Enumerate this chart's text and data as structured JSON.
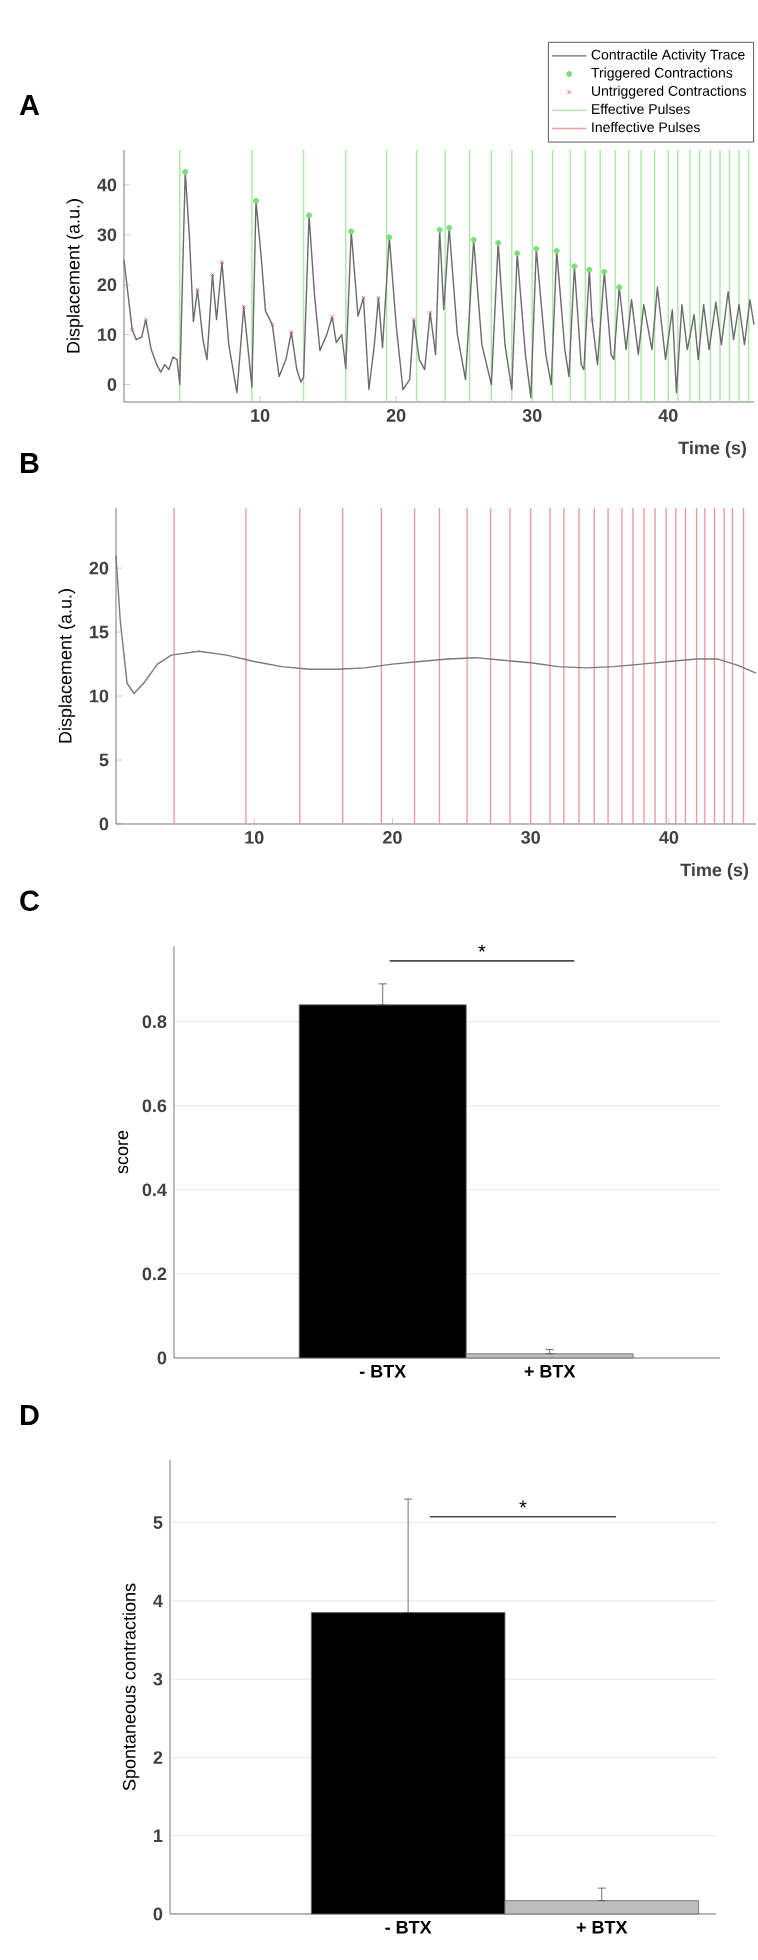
{
  "chart_data": [
    {
      "type": "line",
      "title": "A",
      "xlabel": "Time (s)",
      "ylabel": "Displacement (a.u.)",
      "xlim": [
        0,
        46.3
      ],
      "ylim": [
        -3.5,
        47
      ],
      "xticks": [
        10,
        20,
        30,
        40
      ],
      "yticks": [
        0,
        10,
        20,
        30,
        40
      ],
      "legend": "top right",
      "series": [
        {
          "name": "Contractile Activity Trace",
          "type": "line",
          "color": "#6b6b6b",
          "x": [
            0,
            0.3,
            0.6,
            0.9,
            1.3,
            1.6,
            2.0,
            2.4,
            2.7,
            3.0,
            3.3,
            3.6,
            3.9,
            4.1,
            4.5,
            4.8,
            5.1,
            5.4,
            5.8,
            6.1,
            6.5,
            6.8,
            7.2,
            7.7,
            8.3,
            8.8,
            9.4,
            9.7,
            10.1,
            10.4,
            10.9,
            11.4,
            11.9,
            12.3,
            12.7,
            13.0,
            13.2,
            13.6,
            14.0,
            14.4,
            14.9,
            15.3,
            15.6,
            16.0,
            16.3,
            16.7,
            17.2,
            17.6,
            18.0,
            18.4,
            18.7,
            19.0,
            19.5,
            20.0,
            20.5,
            21.0,
            21.3,
            21.7,
            22.1,
            22.5,
            22.9,
            23.2,
            23.5,
            23.9,
            24.5,
            25.1,
            25.7,
            26.3,
            27.0,
            27.5,
            28.0,
            28.5,
            28.9,
            29.5,
            29.9,
            30.3,
            31.0,
            31.4,
            31.8,
            32.4,
            32.7,
            33.1,
            33.6,
            33.8,
            34.2,
            34.4,
            34.8,
            35.3,
            35.8,
            36.0,
            36.4,
            36.9,
            37.3,
            37.8,
            38.2,
            38.8,
            39.2,
            39.8,
            40.3,
            40.6,
            41.0,
            41.4,
            41.9,
            42.2,
            42.6,
            43.0,
            43.5,
            43.9,
            44.4,
            44.8,
            45.2,
            45.6,
            46.0,
            46.3
          ],
          "values": [
            25,
            18,
            11,
            9,
            9.5,
            13,
            7,
            4,
            2.5,
            4,
            3,
            5.5,
            5,
            0,
            42.6,
            30,
            12.6,
            19,
            9,
            5,
            22,
            13,
            24.5,
            8,
            -1.6,
            15.6,
            -0.5,
            36.8,
            25,
            14.7,
            12,
            1.6,
            5,
            10.5,
            3,
            0.5,
            1.5,
            33.9,
            18,
            6.8,
            10,
            13.5,
            8.4,
            10,
            3.2,
            30.7,
            13.7,
            17.4,
            -1,
            8,
            17.4,
            7.4,
            29.5,
            12,
            -1,
            1,
            13,
            5,
            3,
            14.4,
            6,
            31,
            15,
            31.4,
            10,
            1,
            29,
            8,
            0,
            28.4,
            8,
            -1,
            26.3,
            6,
            -2.6,
            27.2,
            6,
            0,
            26.8,
            7,
            1.6,
            23.7,
            4,
            3,
            23,
            13,
            4,
            22.6,
            6,
            5,
            19.5,
            7,
            17,
            6,
            16,
            7,
            19.5,
            5,
            15,
            -1.6,
            16,
            7,
            14,
            5,
            16,
            7,
            16.5,
            8,
            18.6,
            9,
            16,
            8,
            17,
            12
          ]
        },
        {
          "name": "Triggered Contractions",
          "type": "scatter",
          "marker": "circle",
          "color": "#7ddc7d",
          "x": [
            4.5,
            9.7,
            13.6,
            16.7,
            19.5,
            23.2,
            23.9,
            25.7,
            27.5,
            28.9,
            30.3,
            31.8,
            33.1,
            34.2,
            35.3,
            36.4
          ],
          "values": [
            42.6,
            36.8,
            33.9,
            30.7,
            29.5,
            31,
            31.4,
            29,
            28.4,
            26.3,
            27.2,
            26.8,
            23.7,
            23,
            22.6,
            19.5
          ]
        },
        {
          "name": "Untriggered Contractions",
          "type": "scatter",
          "marker": "cross",
          "color": "#e0506a",
          "x": [
            0.6,
            1.6,
            5.4,
            6.5,
            7.2,
            8.8,
            10.9,
            12.3,
            15.3,
            17.6,
            18.7,
            21.3,
            22.5,
            34.4
          ],
          "values": [
            11,
            13,
            19,
            22,
            24.5,
            15.6,
            12,
            10.5,
            13.5,
            17.4,
            17.4,
            13,
            14.4,
            13
          ]
        },
        {
          "name": "Effective Pulses",
          "type": "line",
          "color": "#a8eaa0"
        },
        {
          "name": "Ineffective Pulses",
          "type": "line",
          "color": "#f0a0a8"
        }
      ],
      "ref_lines": [
        {
          "axis": "x",
          "value": 4.1,
          "color": "#a8eaa0"
        },
        {
          "axis": "x",
          "value": 9.4,
          "color": "#a8eaa0"
        },
        {
          "axis": "x",
          "value": 13.2,
          "color": "#a8eaa0"
        },
        {
          "axis": "x",
          "value": 16.3,
          "color": "#a8eaa0"
        },
        {
          "axis": "x",
          "value": 19.3,
          "color": "#a8eaa0"
        },
        {
          "axis": "x",
          "value": 21.5,
          "color": "#a8eaa0"
        },
        {
          "axis": "x",
          "value": 23.6,
          "color": "#a8eaa0"
        },
        {
          "axis": "x",
          "value": 25.4,
          "color": "#a8eaa0"
        },
        {
          "axis": "x",
          "value": 27.0,
          "color": "#a8eaa0"
        },
        {
          "axis": "x",
          "value": 28.5,
          "color": "#a8eaa0"
        },
        {
          "axis": "x",
          "value": 30.0,
          "color": "#a8eaa0"
        },
        {
          "axis": "x",
          "value": 31.5,
          "color": "#a8eaa0"
        },
        {
          "axis": "x",
          "value": 32.8,
          "color": "#a8eaa0"
        },
        {
          "axis": "x",
          "value": 33.9,
          "color": "#a8eaa0"
        },
        {
          "axis": "x",
          "value": 35.0,
          "color": "#a8eaa0"
        },
        {
          "axis": "x",
          "value": 36.1,
          "color": "#a8eaa0"
        },
        {
          "axis": "x",
          "value": 37.1,
          "color": "#a8eaa0"
        },
        {
          "axis": "x",
          "value": 38.0,
          "color": "#a8eaa0"
        },
        {
          "axis": "x",
          "value": 39.0,
          "color": "#a8eaa0"
        },
        {
          "axis": "x",
          "value": 40.0,
          "color": "#a8eaa0"
        },
        {
          "axis": "x",
          "value": 40.7,
          "color": "#a8eaa0"
        },
        {
          "axis": "x",
          "value": 41.6,
          "color": "#a8eaa0"
        },
        {
          "axis": "x",
          "value": 42.3,
          "color": "#a8eaa0"
        },
        {
          "axis": "x",
          "value": 43.1,
          "color": "#a8eaa0"
        },
        {
          "axis": "x",
          "value": 43.8,
          "color": "#a8eaa0"
        },
        {
          "axis": "x",
          "value": 44.5,
          "color": "#a8eaa0"
        },
        {
          "axis": "x",
          "value": 45.2,
          "color": "#a8eaa0"
        },
        {
          "axis": "x",
          "value": 45.9,
          "color": "#a8eaa0"
        }
      ]
    },
    {
      "type": "line",
      "title": "B",
      "xlabel": "Time (s)",
      "ylabel": "Displacement (a.u.)",
      "xlim": [
        0,
        46.3
      ],
      "ylim": [
        0,
        24.7
      ],
      "xticks": [
        10,
        20,
        30,
        40
      ],
      "yticks": [
        0,
        5,
        10,
        15,
        20
      ],
      "series": [
        {
          "type": "line",
          "color": "#7a7a7a",
          "x": [
            0,
            0.3,
            0.8,
            1.3,
            2,
            3,
            4,
            6,
            8,
            10,
            12,
            14,
            16,
            18,
            20,
            22,
            24,
            26,
            28,
            30,
            32,
            34,
            36,
            38,
            40,
            42,
            43.5,
            45,
            46.3
          ],
          "values": [
            21,
            16,
            11,
            10.2,
            11,
            12.5,
            13.2,
            13.5,
            13.2,
            12.7,
            12.3,
            12.1,
            12.1,
            12.2,
            12.5,
            12.7,
            12.9,
            13,
            12.8,
            12.6,
            12.3,
            12.2,
            12.3,
            12.5,
            12.7,
            12.9,
            12.9,
            12.4,
            11.8
          ]
        }
      ],
      "ref_lines": [
        {
          "axis": "x",
          "value": 4.2,
          "color": "#ec9aa2"
        },
        {
          "axis": "x",
          "value": 9.4,
          "color": "#ec9aa2"
        },
        {
          "axis": "x",
          "value": 13.3,
          "color": "#ec9aa2"
        },
        {
          "axis": "x",
          "value": 16.4,
          "color": "#ec9aa2"
        },
        {
          "axis": "x",
          "value": 19.2,
          "color": "#ec9aa2"
        },
        {
          "axis": "x",
          "value": 21.6,
          "color": "#ec9aa2"
        },
        {
          "axis": "x",
          "value": 23.4,
          "color": "#ec9aa2"
        },
        {
          "axis": "x",
          "value": 25.4,
          "color": "#ec9aa2"
        },
        {
          "axis": "x",
          "value": 27.1,
          "color": "#ec9aa2"
        },
        {
          "axis": "x",
          "value": 28.5,
          "color": "#ec9aa2"
        },
        {
          "axis": "x",
          "value": 30.0,
          "color": "#ec9aa2"
        },
        {
          "axis": "x",
          "value": 31.4,
          "color": "#ec9aa2"
        },
        {
          "axis": "x",
          "value": 32.4,
          "color": "#ec9aa2"
        },
        {
          "axis": "x",
          "value": 33.5,
          "color": "#ec9aa2"
        },
        {
          "axis": "x",
          "value": 34.6,
          "color": "#ec9aa2"
        },
        {
          "axis": "x",
          "value": 35.6,
          "color": "#ec9aa2"
        },
        {
          "axis": "x",
          "value": 36.6,
          "color": "#ec9aa2"
        },
        {
          "axis": "x",
          "value": 37.4,
          "color": "#ec9aa2"
        },
        {
          "axis": "x",
          "value": 38.2,
          "color": "#ec9aa2"
        },
        {
          "axis": "x",
          "value": 39.0,
          "color": "#ec9aa2"
        },
        {
          "axis": "x",
          "value": 39.8,
          "color": "#ec9aa2"
        },
        {
          "axis": "x",
          "value": 40.5,
          "color": "#ec9aa2"
        },
        {
          "axis": "x",
          "value": 41.2,
          "color": "#ec9aa2"
        },
        {
          "axis": "x",
          "value": 42.0,
          "color": "#ec9aa2"
        },
        {
          "axis": "x",
          "value": 42.6,
          "color": "#ec9aa2"
        },
        {
          "axis": "x",
          "value": 43.3,
          "color": "#ec9aa2"
        },
        {
          "axis": "x",
          "value": 44.0,
          "color": "#ec9aa2"
        },
        {
          "axis": "x",
          "value": 44.6,
          "color": "#ec9aa2"
        },
        {
          "axis": "x",
          "value": 45.4,
          "color": "#ec9aa2"
        }
      ]
    },
    {
      "type": "bar",
      "title": "C",
      "ylabel": "score",
      "categories": [
        "- BTX",
        "+ BTX"
      ],
      "values": [
        0.84,
        0.01
      ],
      "colors": [
        "#000000",
        "#bdbdbd"
      ],
      "errors": [
        [
          0.84,
          0.89
        ],
        [
          0.01,
          0.02
        ]
      ],
      "ylim": [
        0,
        0.98
      ],
      "yticks": [
        0,
        0.2,
        0.4,
        0.6,
        0.8
      ],
      "grid": "y",
      "annotations": [
        "*"
      ]
    },
    {
      "type": "bar",
      "title": "D",
      "ylabel": "Spontaneous contractions",
      "categories": [
        "- BTX",
        "+ BTX"
      ],
      "values": [
        3.85,
        0.17
      ],
      "colors": [
        "#000000",
        "#bdbdbd"
      ],
      "errors": [
        [
          3.85,
          5.3
        ],
        [
          0.17,
          0.33
        ]
      ],
      "ylim": [
        0,
        5.8
      ],
      "yticks": [
        0,
        1,
        2,
        3,
        4,
        5
      ],
      "grid": "y",
      "annotations": [
        "*"
      ]
    }
  ]
}
